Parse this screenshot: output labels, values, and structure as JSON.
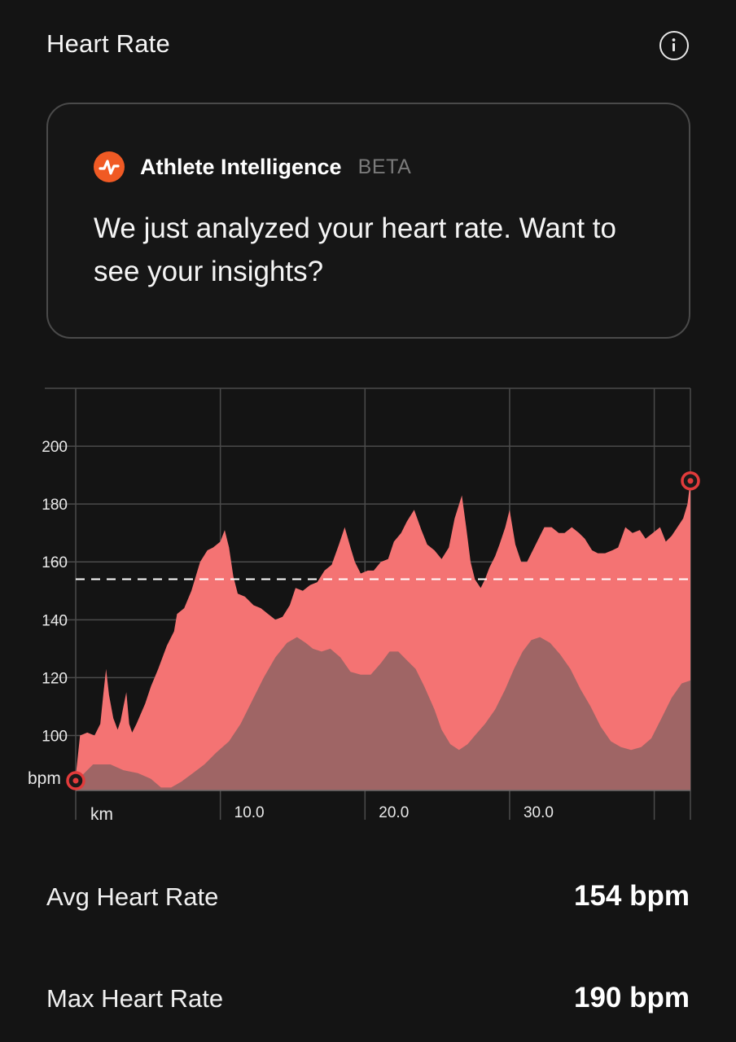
{
  "header": {
    "title": "Heart Rate",
    "info_icon": "info-icon"
  },
  "insight_card": {
    "logo_icon": "strava-logo-icon",
    "brand": "Athlete Intelligence",
    "badge": "BETA",
    "message": "We just analyzed your heart rate. Want to see your insights?",
    "accent_color": "#f05a24"
  },
  "chart_data": {
    "type": "area",
    "y_unit": "bpm",
    "x_unit": "km",
    "y_ticks": [
      "100",
      "120",
      "140",
      "160",
      "180",
      "200"
    ],
    "x_ticks": [
      "10.0",
      "20.0",
      "30.0"
    ],
    "ylim": [
      81,
      220
    ],
    "xlim": [
      0,
      42.5
    ],
    "grid": true,
    "average_line": 154,
    "colors": {
      "heart_rate": "#f47373",
      "elevation": "#5a5a5a",
      "marker": "#e23b3b",
      "average_line": "#ffffff"
    },
    "series": [
      {
        "values": [
          [
            0,
            86
          ],
          [
            0.3,
            100
          ],
          [
            0.8,
            101
          ],
          [
            1.3,
            100
          ],
          [
            1.7,
            104
          ],
          [
            1.9,
            114
          ],
          [
            2.1,
            123
          ],
          [
            2.3,
            114
          ],
          [
            2.6,
            106
          ],
          [
            2.9,
            102
          ],
          [
            3.1,
            105
          ],
          [
            3.3,
            110
          ],
          [
            3.5,
            115
          ],
          [
            3.7,
            104
          ],
          [
            3.9,
            101
          ],
          [
            4.2,
            104
          ],
          [
            4.8,
            111
          ],
          [
            5.2,
            117
          ],
          [
            5.7,
            123
          ],
          [
            6.3,
            131
          ],
          [
            6.8,
            136
          ],
          [
            7.0,
            142
          ],
          [
            7.5,
            144
          ],
          [
            8.0,
            150
          ],
          [
            8.6,
            160
          ],
          [
            9.1,
            164
          ],
          [
            9.5,
            165
          ],
          [
            10.0,
            167
          ],
          [
            10.3,
            171
          ],
          [
            10.6,
            165
          ],
          [
            10.9,
            155
          ],
          [
            11.2,
            149
          ],
          [
            11.7,
            148
          ],
          [
            12.3,
            145
          ],
          [
            12.8,
            144
          ],
          [
            13.3,
            142
          ],
          [
            13.8,
            140
          ],
          [
            14.3,
            141
          ],
          [
            14.8,
            145
          ],
          [
            15.2,
            151
          ],
          [
            15.7,
            150
          ],
          [
            16.2,
            152
          ],
          [
            16.7,
            153
          ],
          [
            17.2,
            157
          ],
          [
            17.7,
            159
          ],
          [
            18.2,
            166
          ],
          [
            18.6,
            172
          ],
          [
            19.0,
            165
          ],
          [
            19.3,
            160
          ],
          [
            19.7,
            156
          ],
          [
            20.2,
            157
          ],
          [
            20.6,
            157
          ],
          [
            21.1,
            160
          ],
          [
            21.6,
            161
          ],
          [
            22.0,
            167
          ],
          [
            22.5,
            170
          ],
          [
            22.9,
            174
          ],
          [
            23.4,
            178
          ],
          [
            23.9,
            171
          ],
          [
            24.3,
            166
          ],
          [
            24.8,
            164
          ],
          [
            25.3,
            161
          ],
          [
            25.8,
            165
          ],
          [
            26.2,
            175
          ],
          [
            26.7,
            183
          ],
          [
            27.0,
            172
          ],
          [
            27.3,
            160
          ],
          [
            27.6,
            154
          ],
          [
            28.0,
            151
          ],
          [
            28.3,
            154
          ],
          [
            28.6,
            158
          ],
          [
            29.0,
            162
          ],
          [
            29.3,
            166
          ],
          [
            29.7,
            172
          ],
          [
            30.0,
            178
          ],
          [
            30.4,
            166
          ],
          [
            30.8,
            160
          ],
          [
            31.2,
            160
          ],
          [
            31.6,
            164
          ],
          [
            32.0,
            168
          ],
          [
            32.4,
            172
          ],
          [
            32.9,
            172
          ],
          [
            33.4,
            170
          ],
          [
            33.8,
            170
          ],
          [
            34.3,
            172
          ],
          [
            34.8,
            170
          ],
          [
            35.2,
            168
          ],
          [
            35.7,
            164
          ],
          [
            36.1,
            163
          ],
          [
            36.6,
            163
          ],
          [
            37.1,
            164
          ],
          [
            37.5,
            165
          ],
          [
            38.0,
            172
          ],
          [
            38.5,
            170
          ],
          [
            39.0,
            171
          ],
          [
            39.4,
            168
          ],
          [
            39.9,
            170
          ],
          [
            40.4,
            172
          ],
          [
            40.8,
            167
          ],
          [
            41.2,
            169
          ],
          [
            41.6,
            172
          ],
          [
            42.0,
            175
          ],
          [
            42.3,
            180
          ],
          [
            42.5,
            188
          ]
        ]
      },
      {
        "values": [
          [
            0,
            82
          ],
          [
            0.4,
            86
          ],
          [
            1.2,
            90
          ],
          [
            2.4,
            90
          ],
          [
            3.3,
            88
          ],
          [
            4.3,
            87
          ],
          [
            5.2,
            85
          ],
          [
            5.9,
            82
          ],
          [
            6.6,
            82
          ],
          [
            7.3,
            84
          ],
          [
            8.1,
            87
          ],
          [
            8.9,
            90
          ],
          [
            9.7,
            94
          ],
          [
            10.6,
            98
          ],
          [
            11.4,
            104
          ],
          [
            12.2,
            112
          ],
          [
            13.0,
            120
          ],
          [
            13.8,
            127
          ],
          [
            14.6,
            132
          ],
          [
            15.3,
            134
          ],
          [
            15.9,
            132
          ],
          [
            16.4,
            130
          ],
          [
            17.0,
            129
          ],
          [
            17.6,
            130
          ],
          [
            18.3,
            127
          ],
          [
            19.0,
            122
          ],
          [
            19.7,
            121
          ],
          [
            20.4,
            121
          ],
          [
            21.1,
            125
          ],
          [
            21.7,
            129
          ],
          [
            22.3,
            129
          ],
          [
            22.9,
            126
          ],
          [
            23.5,
            123
          ],
          [
            24.1,
            117
          ],
          [
            24.8,
            109
          ],
          [
            25.3,
            102
          ],
          [
            25.9,
            97
          ],
          [
            26.5,
            95
          ],
          [
            27.1,
            97
          ],
          [
            27.6,
            100
          ],
          [
            28.3,
            104
          ],
          [
            29.0,
            109
          ],
          [
            29.7,
            116
          ],
          [
            30.3,
            123
          ],
          [
            30.9,
            129
          ],
          [
            31.5,
            133
          ],
          [
            32.1,
            134
          ],
          [
            32.8,
            132
          ],
          [
            33.5,
            128
          ],
          [
            34.2,
            123
          ],
          [
            34.9,
            116
          ],
          [
            35.6,
            110
          ],
          [
            36.3,
            103
          ],
          [
            37.0,
            98
          ],
          [
            37.7,
            96
          ],
          [
            38.4,
            95
          ],
          [
            39.1,
            96
          ],
          [
            39.8,
            99
          ],
          [
            40.5,
            106
          ],
          [
            41.2,
            113
          ],
          [
            41.9,
            118
          ],
          [
            42.5,
            119
          ]
        ]
      }
    ],
    "markers": [
      {
        "x": 0,
        "y": 81
      },
      {
        "x": 42.5,
        "y": 188
      }
    ]
  },
  "stats": [
    {
      "label": "Avg Heart Rate",
      "value": "154 bpm"
    },
    {
      "label": "Max Heart Rate",
      "value": "190 bpm"
    }
  ]
}
